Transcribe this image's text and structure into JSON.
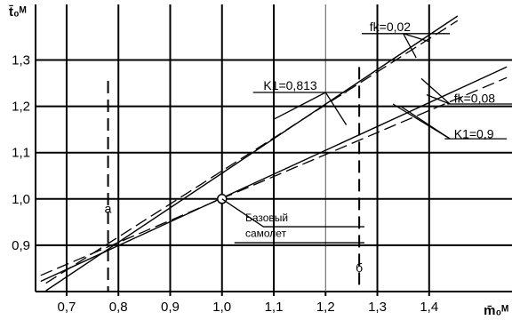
{
  "chart_data": {
    "type": "line",
    "xlabel": "m̄₀ᴹ",
    "ylabel": "t̄₀ᴹ",
    "xlim": [
      0.64,
      1.56
    ],
    "ylim": [
      0.8,
      1.42
    ],
    "x_ticks": [
      0.7,
      0.8,
      0.9,
      1.0,
      1.1,
      1.2,
      1.3,
      1.4
    ],
    "y_ticks": [
      0.9,
      1.0,
      1.1,
      1.2,
      1.3
    ],
    "x_tick_labels": [
      "0,7",
      "0,8",
      "0,9",
      "1,0",
      "1,1",
      "1,2",
      "1,3",
      "1,4"
    ],
    "y_tick_labels": [
      "0,9",
      "1,0",
      "1,1",
      "1,2",
      "1,3"
    ],
    "grid": true,
    "reference_point": {
      "x": 1.0,
      "y": 1.0,
      "label_line1": "Базовый",
      "label_line2": "самолет"
    },
    "vertical_markers": [
      {
        "x": 0.78,
        "label": "a"
      },
      {
        "x": 1.265,
        "label": "б"
      }
    ],
    "series": [
      {
        "name": "fk=0,02",
        "style": "solid",
        "x": [
          0.66,
          1.455
        ],
        "y": [
          0.802,
          1.395
        ]
      },
      {
        "name": "fk=0,02",
        "style": "dashed",
        "x": [
          0.66,
          1.455
        ],
        "y": [
          0.818,
          1.385
        ]
      },
      {
        "name": "K1=0,813",
        "style": "solid",
        "x": [
          0.65,
          1.55
        ],
        "y": [
          0.822,
          1.285
        ]
      },
      {
        "name": "K1=0,813",
        "style": "dashed",
        "x": [
          0.65,
          1.55
        ],
        "y": [
          0.835,
          1.262
        ]
      }
    ],
    "annotations": [
      {
        "text": "fk=0,02",
        "x": 1.285,
        "y": 1.362
      },
      {
        "text": "K1=0,813",
        "x": 1.08,
        "y": 1.236
      },
      {
        "text": "fk=0,08",
        "x": 1.448,
        "y": 1.208
      },
      {
        "text": "K1=0,9",
        "x": 1.448,
        "y": 1.131
      }
    ]
  }
}
